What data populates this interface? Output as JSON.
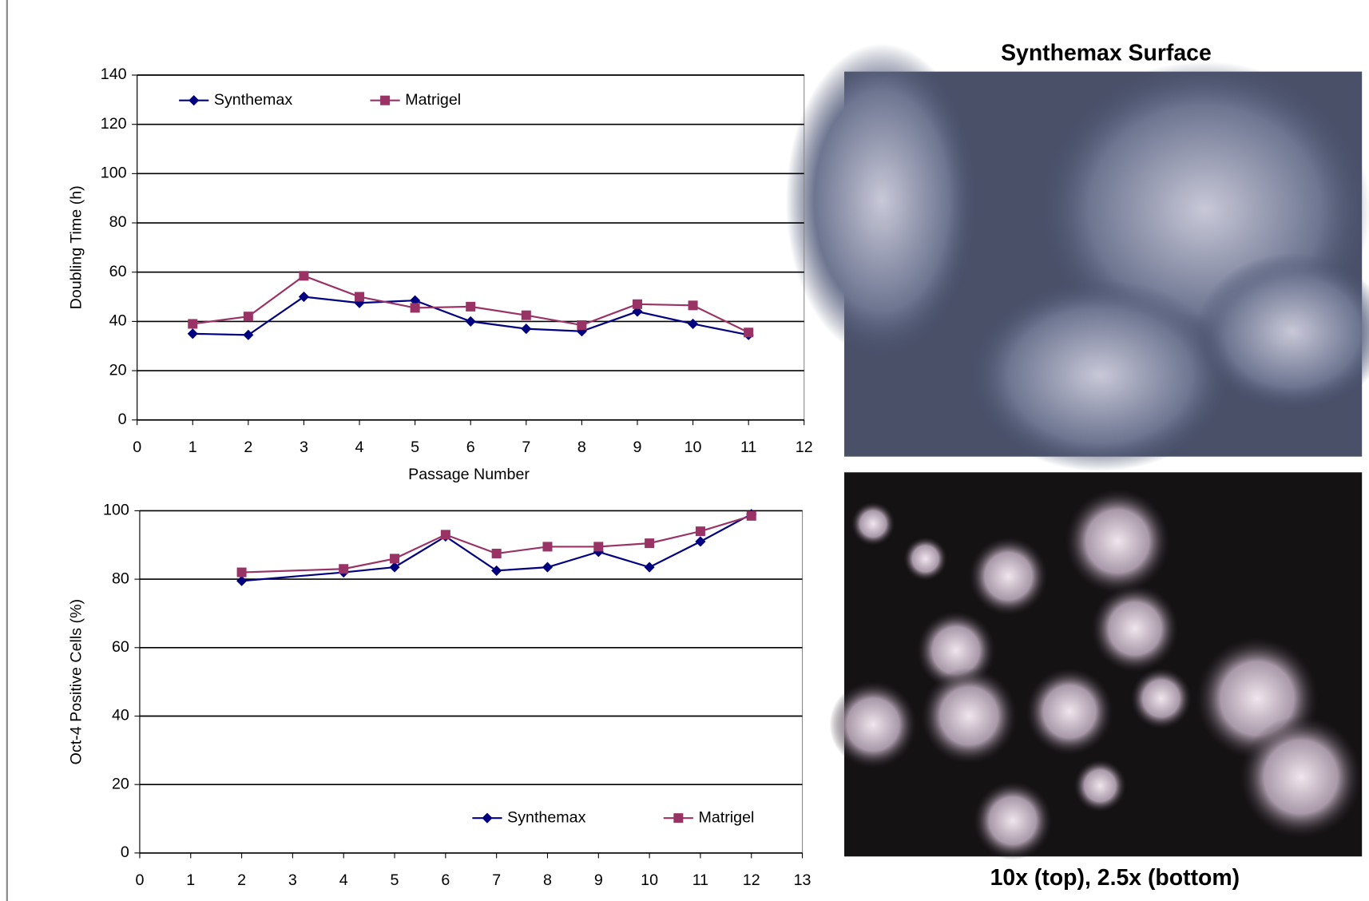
{
  "chart_data": [
    {
      "type": "line",
      "x_label": "Passage Number",
      "y_label": "Doubling Time (h)",
      "x": [
        1,
        2,
        3,
        4,
        5,
        6,
        7,
        8,
        9,
        10,
        11
      ],
      "series": [
        {
          "name": "Synthemax",
          "color": "#000080",
          "marker": "diamond",
          "values": [
            35,
            34.5,
            50,
            47.5,
            48.5,
            40,
            37,
            36,
            44,
            39,
            34.5
          ]
        },
        {
          "name": "Matrigel",
          "color": "#993366",
          "marker": "square",
          "values": [
            39,
            42,
            58.5,
            50,
            45.5,
            46,
            42.5,
            38.5,
            47,
            46.5,
            35.5
          ]
        }
      ],
      "xlim": [
        0,
        12
      ],
      "xticks": [
        0,
        1,
        2,
        3,
        4,
        5,
        6,
        7,
        8,
        9,
        10,
        11,
        12
      ],
      "ylim": [
        0,
        140
      ],
      "yticks": [
        0,
        20,
        40,
        60,
        80,
        100,
        120,
        140
      ],
      "grid": true,
      "legend": "upper left"
    },
    {
      "type": "line",
      "y_label": "Oct-4 Positive Cells (%)",
      "x": [
        2,
        4,
        5,
        6,
        7,
        8,
        9,
        10,
        11,
        12
      ],
      "series": [
        {
          "name": "Synthemax",
          "color": "#000080",
          "marker": "diamond",
          "values": [
            79.5,
            82,
            83.5,
            92.5,
            82.5,
            83.5,
            88,
            83.5,
            91,
            99
          ]
        },
        {
          "name": "Matrigel",
          "color": "#993366",
          "marker": "square",
          "values": [
            82,
            83,
            86,
            93,
            87.5,
            89.5,
            89.5,
            90.5,
            94,
            98.5
          ]
        }
      ],
      "xlim": [
        0,
        13
      ],
      "xticks": [
        0,
        1,
        2,
        3,
        4,
        5,
        6,
        7,
        8,
        9,
        10,
        11,
        12,
        13
      ],
      "ylim": [
        0,
        100
      ],
      "yticks": [
        0,
        20,
        40,
        60,
        80,
        100
      ],
      "grid": true,
      "legend": "lower right"
    }
  ],
  "images": {
    "title": "Synthemax Surface",
    "caption": "10x (top), 2.5x (bottom)"
  }
}
